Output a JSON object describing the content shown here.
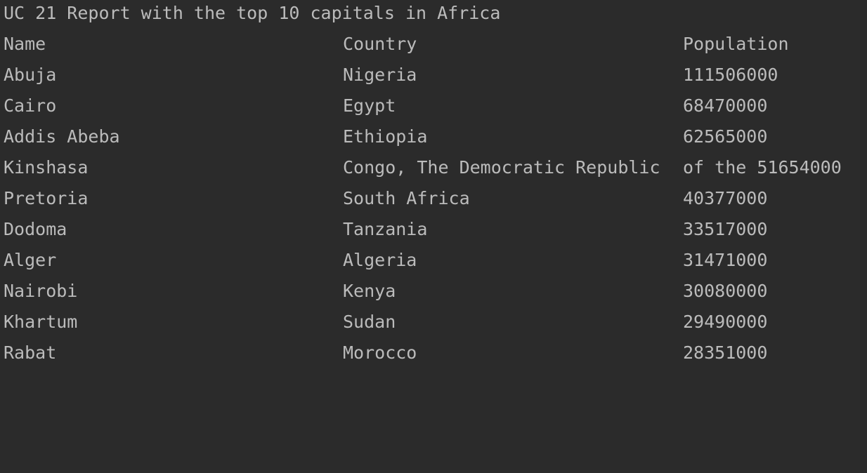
{
  "console": {
    "title": "UC 21 Report with the top 10 capitals in Africa",
    "headers": {
      "name": "Name",
      "country": "Country",
      "population": "Population"
    },
    "rows": [
      {
        "name": "Abuja",
        "country": "Nigeria",
        "population": "111506000"
      },
      {
        "name": "Cairo",
        "country": "Egypt",
        "population": "68470000"
      },
      {
        "name": "Addis Abeba",
        "country": "Ethiopia",
        "population": "62565000"
      },
      {
        "name": "Kinshasa",
        "country": "Congo, The Democratic Republic",
        "population": "of the 51654000"
      },
      {
        "name": "Pretoria",
        "country": "South Africa",
        "population": "40377000"
      },
      {
        "name": "Dodoma",
        "country": "Tanzania",
        "population": "33517000"
      },
      {
        "name": "Alger",
        "country": "Algeria",
        "population": "31471000"
      },
      {
        "name": "Nairobi",
        "country": "Kenya",
        "population": "30080000"
      },
      {
        "name": "Khartum",
        "country": "Sudan",
        "population": "29490000"
      },
      {
        "name": "Rabat",
        "country": "Morocco",
        "population": "28351000"
      }
    ]
  }
}
